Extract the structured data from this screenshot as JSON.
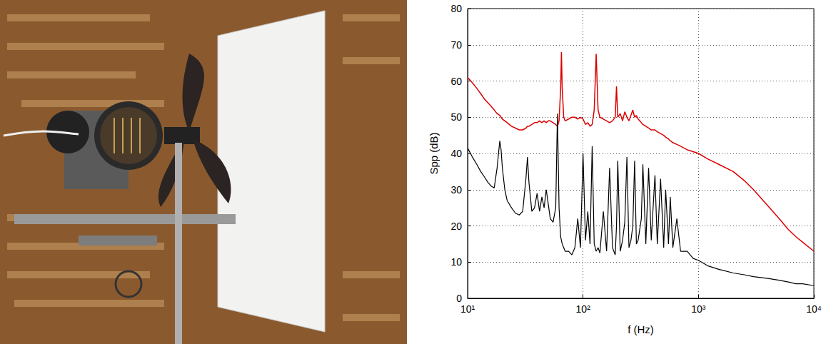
{
  "chart_data": {
    "type": "line",
    "xlabel": "f (Hz)",
    "ylabel": "Spp (dB)",
    "x": [
      10,
      11,
      12,
      13,
      14,
      15,
      16,
      17,
      18,
      19,
      19.5,
      20,
      21,
      22,
      24,
      26,
      28,
      30,
      32,
      33,
      34,
      36,
      38,
      40,
      42,
      44,
      46,
      48,
      50,
      52,
      55,
      58,
      60,
      62,
      64,
      65,
      66,
      68,
      70,
      75,
      80,
      85,
      90,
      95,
      100,
      105,
      110,
      115,
      120,
      125,
      130,
      135,
      140,
      150,
      160,
      170,
      180,
      190,
      195,
      200,
      210,
      220,
      230,
      240,
      250,
      260,
      270,
      280,
      290,
      300,
      320,
      330,
      350,
      370,
      390,
      420,
      440,
      470,
      500,
      520,
      550,
      570,
      600,
      650,
      700,
      800,
      900,
      1000,
      1200,
      1500,
      2000,
      2500,
      3000,
      4000,
      5000,
      6000,
      7000,
      8000,
      10000
    ],
    "series": [
      {
        "color": "#dd0000",
        "values": [
          61,
          59.5,
          58,
          56.5,
          55,
          54,
          53,
          52,
          51,
          50.5,
          50,
          49.5,
          49,
          48.5,
          47.5,
          47,
          46.5,
          46.5,
          47,
          47.5,
          47.5,
          48,
          48.5,
          48.5,
          49,
          48.5,
          49,
          48.5,
          49,
          49,
          48.5,
          48,
          47.5,
          49,
          58,
          68,
          58,
          50,
          49,
          49.5,
          50,
          50,
          49.5,
          50,
          49.5,
          48,
          48.5,
          47.5,
          48,
          52,
          67.5,
          52,
          50,
          49.5,
          49,
          48.5,
          49,
          50,
          58.5,
          50,
          51,
          49,
          51.5,
          50,
          49,
          50.5,
          52,
          50,
          50.5,
          49.5,
          48.5,
          48,
          47.5,
          47,
          46.5,
          46.5,
          46,
          45.5,
          45,
          44.5,
          44,
          43.5,
          43,
          42.5,
          42,
          41,
          40.5,
          40,
          38.5,
          37,
          35,
          32.5,
          30,
          25.5,
          22,
          19,
          17,
          15.5,
          13
        ]
      },
      {
        "color": "#000000",
        "values": [
          41.5,
          39,
          37,
          35,
          33.5,
          32,
          31,
          30.5,
          36,
          43.5,
          41,
          36,
          30,
          27,
          25,
          23.5,
          23,
          24,
          33,
          39,
          32,
          24,
          25,
          29,
          24,
          28,
          25,
          30,
          26,
          22,
          21,
          25,
          51,
          25,
          17,
          16,
          15,
          14,
          13,
          13,
          12,
          14,
          22,
          14,
          40,
          16,
          24,
          15,
          42,
          15,
          13,
          14,
          12.5,
          24,
          13,
          36,
          14,
          12,
          20,
          38,
          13,
          16,
          21,
          39,
          14,
          16,
          20,
          38,
          15,
          16,
          22,
          37,
          15,
          36,
          16,
          34,
          15,
          33,
          14,
          30,
          15,
          28,
          14,
          22,
          13,
          13,
          11,
          10.5,
          9,
          8,
          7,
          6.5,
          6,
          5.5,
          5,
          4.5,
          4,
          4,
          3.5
        ]
      }
    ],
    "xlim": [
      10,
      10000
    ],
    "xticks": [
      {
        "value": 10,
        "label": "10¹"
      },
      {
        "value": 100,
        "label": "10²"
      },
      {
        "value": 1000,
        "label": "10³"
      },
      {
        "value": 10000,
        "label": "10⁴"
      }
    ],
    "ylim": [
      0,
      80
    ],
    "yticks": [
      0,
      10,
      20,
      30,
      40,
      50,
      60,
      70,
      80
    ],
    "log": "x",
    "grid": true
  }
}
